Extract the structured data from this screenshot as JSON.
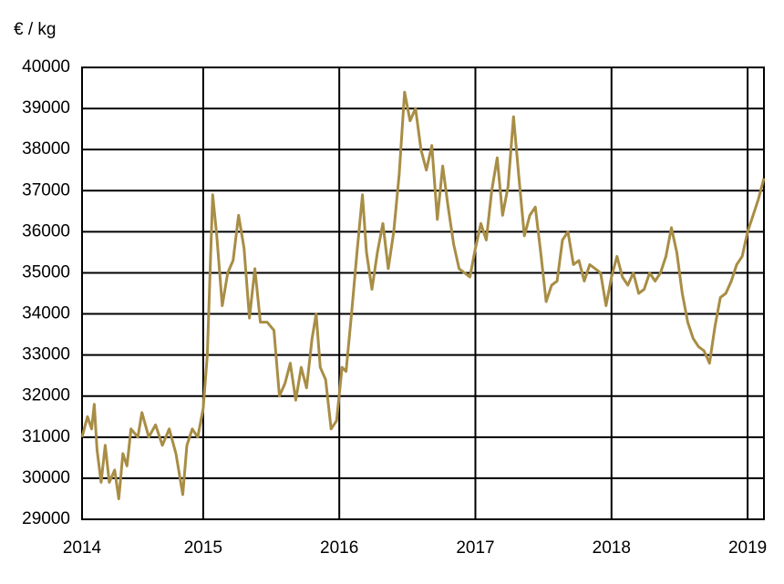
{
  "chart_data": {
    "type": "line",
    "ylabel": "€ / kg",
    "x": [
      2014.11,
      2014.15,
      2014.18,
      2014.2,
      2014.22,
      2014.25,
      2014.28,
      2014.31,
      2014.35,
      2014.38,
      2014.41,
      2014.44,
      2014.47,
      2014.52,
      2014.55,
      2014.6,
      2014.65,
      2014.7,
      2014.75,
      2014.8,
      2014.85,
      2014.88,
      2014.92,
      2014.96,
      2015.0,
      2015.03,
      2015.07,
      2015.1,
      2015.14,
      2015.18,
      2015.22,
      2015.26,
      2015.3,
      2015.34,
      2015.38,
      2015.42,
      2015.47,
      2015.52,
      2015.56,
      2015.6,
      2015.64,
      2015.68,
      2015.72,
      2015.76,
      2015.8,
      2015.83,
      2015.86,
      2015.9,
      2015.94,
      2015.98,
      2016.02,
      2016.05,
      2016.09,
      2016.13,
      2016.17,
      2016.2,
      2016.24,
      2016.28,
      2016.32,
      2016.36,
      2016.4,
      2016.44,
      2016.48,
      2016.52,
      2016.56,
      2016.6,
      2016.64,
      2016.68,
      2016.72,
      2016.76,
      2016.8,
      2016.84,
      2016.88,
      2016.92,
      2016.96,
      2017.0,
      2017.04,
      2017.08,
      2017.12,
      2017.16,
      2017.2,
      2017.24,
      2017.28,
      2017.32,
      2017.36,
      2017.4,
      2017.44,
      2017.48,
      2017.52,
      2017.56,
      2017.6,
      2017.64,
      2017.68,
      2017.72,
      2017.76,
      2017.8,
      2017.84,
      2017.88,
      2017.92,
      2017.96,
      2018.0,
      2018.04,
      2018.08,
      2018.12,
      2018.16,
      2018.2,
      2018.24,
      2018.28,
      2018.32,
      2018.36,
      2018.4,
      2018.44,
      2018.48,
      2018.52,
      2018.56,
      2018.6,
      2018.64,
      2018.68,
      2018.72,
      2018.76,
      2018.8,
      2018.84,
      2018.88,
      2018.92,
      2018.96,
      2019.0,
      2019.04,
      2019.08,
      2019.12
    ],
    "series": [
      {
        "color": "#a88d45",
        "values": [
          31000,
          31500,
          31200,
          31800,
          30700,
          29900,
          30800,
          29900,
          30200,
          29500,
          30600,
          30300,
          31200,
          31000,
          31600,
          31000,
          31300,
          30800,
          31200,
          30600,
          29600,
          30800,
          31200,
          31000,
          31700,
          33000,
          36900,
          35900,
          34200,
          35000,
          35300,
          36400,
          35600,
          33900,
          35100,
          33800,
          33800,
          33600,
          32000,
          32300,
          32800,
          31900,
          32700,
          32200,
          33400,
          34000,
          32700,
          32400,
          31200,
          31400,
          32700,
          32600,
          34000,
          35500,
          36900,
          35500,
          34600,
          35500,
          36200,
          35100,
          36000,
          37400,
          39400,
          38700,
          39000,
          38000,
          37500,
          38100,
          36300,
          37600,
          36600,
          35700,
          35100,
          35000,
          34900,
          35600,
          36200,
          35800,
          37000,
          37800,
          36400,
          37100,
          38800,
          37300,
          35900,
          36400,
          36600,
          35500,
          34300,
          34700,
          34800,
          35800,
          36000,
          35200,
          35300,
          34800,
          35200,
          35100,
          35000,
          34200,
          34900,
          35400,
          34900,
          34700,
          35000,
          34500,
          34600,
          35000,
          34800,
          35000,
          35400,
          36100,
          35500,
          34500,
          33800,
          33400,
          33200,
          33100,
          32800,
          33700,
          34400,
          34500,
          34800,
          35200,
          35400,
          36000,
          36400,
          36800,
          37300
        ]
      }
    ],
    "xlim": [
      2014.11,
      2019.12
    ],
    "xticks": [
      {
        "value": 2014.11,
        "label": "2014"
      },
      2015,
      2016,
      2017,
      2018,
      2019
    ],
    "ylim": [
      29000,
      40000
    ],
    "yticks": [
      29000,
      30000,
      31000,
      32000,
      33000,
      34000,
      35000,
      36000,
      37000,
      38000,
      39000,
      40000
    ],
    "grid": true
  }
}
